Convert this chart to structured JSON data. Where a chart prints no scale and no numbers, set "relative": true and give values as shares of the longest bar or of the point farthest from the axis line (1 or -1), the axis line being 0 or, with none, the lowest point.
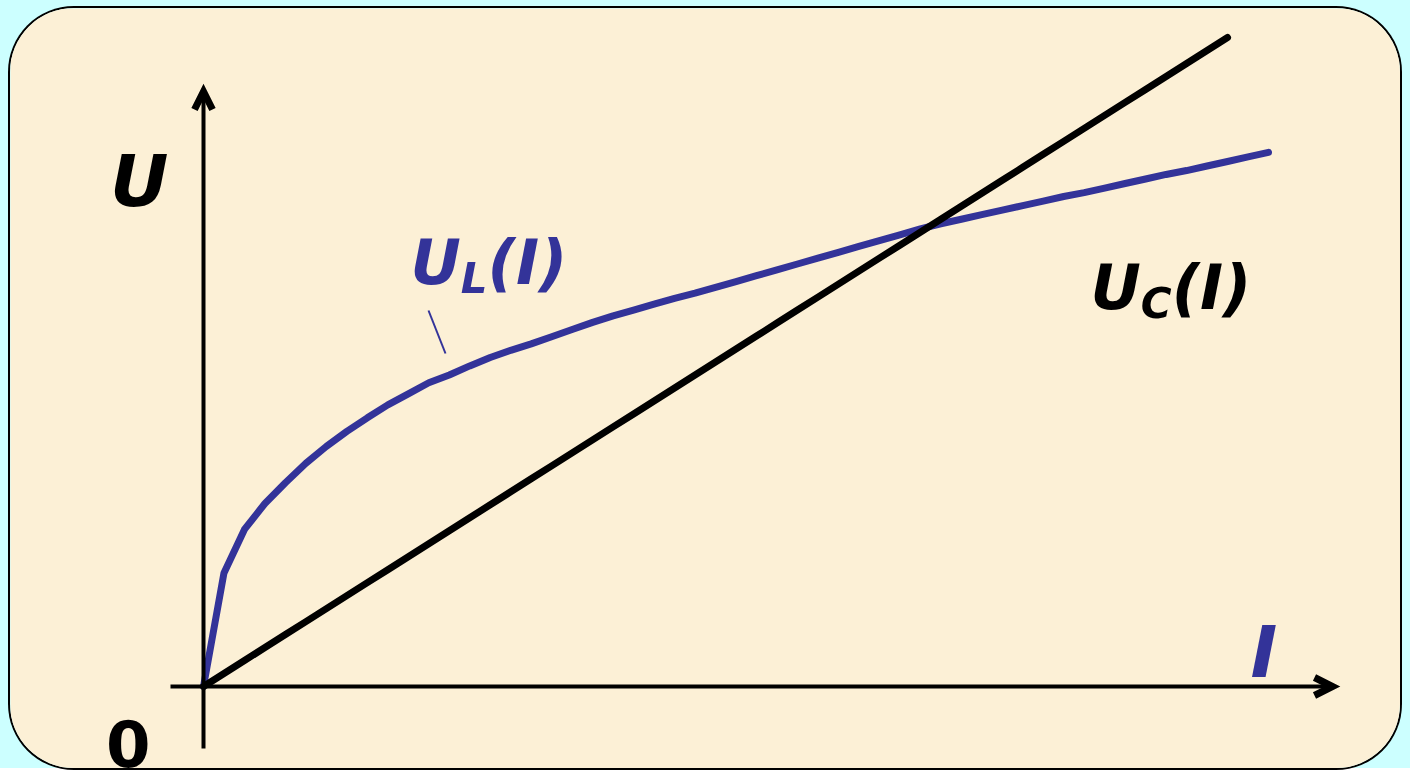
{
  "chart_data": {
    "type": "line",
    "relative": true,
    "xlabel": "I",
    "ylabel": "U",
    "line_style": "solid",
    "annotations": [
      "0"
    ],
    "categories": [
      null,
      null,
      null,
      null,
      null,
      null,
      null,
      null,
      null,
      null,
      null,
      null,
      null,
      null,
      null,
      null,
      null,
      null,
      null,
      null,
      null,
      null,
      null,
      null,
      null,
      null,
      null,
      null,
      null,
      null,
      null,
      null,
      null,
      null,
      null,
      null,
      null,
      null,
      null,
      null,
      null,
      null,
      null,
      null,
      null,
      null,
      null,
      null,
      null,
      null,
      null,
      null,
      null
    ],
    "series": [
      {
        "name": "U$_{L}$(I)",
        "color": "#333399",
        "values": [
          0,
          0.175,
          0.242,
          0.282,
          0.314,
          0.344,
          0.37,
          0.393,
          0.414,
          0.434,
          0.451,
          0.468,
          0.48,
          0.494,
          0.507,
          0.518,
          0.528,
          0.539,
          0.55,
          0.561,
          0.571,
          0.58,
          0.589,
          0.598,
          0.606,
          0.615,
          0.624,
          0.633,
          0.642,
          0.651,
          0.66,
          0.669,
          0.678,
          0.687,
          0.696,
          0.705,
          0.713,
          0.72,
          0.727,
          0.734,
          0.741,
          0.748,
          0.755,
          0.761,
          0.768,
          0.775,
          0.782,
          0.789,
          0.795,
          0.802,
          0.809,
          0.816,
          0.823
        ]
      },
      {
        "name": "U$_{C}$(I)",
        "color": "#000000",
        "values": [
          0,
          0.02,
          0.04,
          0.06,
          0.08,
          0.1,
          0.12,
          0.14,
          0.16,
          0.18,
          0.2,
          0.22,
          0.24,
          0.26,
          0.28,
          0.3,
          0.32,
          0.34,
          0.36,
          0.38,
          0.4,
          0.42,
          0.44,
          0.46,
          0.48,
          0.5,
          0.52,
          0.54,
          0.56,
          0.58,
          0.6,
          0.62,
          0.64,
          0.66,
          0.68,
          0.7,
          0.72,
          0.74,
          0.76,
          0.78,
          0.8,
          0.82,
          0.84,
          0.86,
          0.88,
          0.9,
          0.92,
          0.94,
          0.96,
          0.98,
          1.0,
          null,
          null
        ]
      }
    ]
  }
}
